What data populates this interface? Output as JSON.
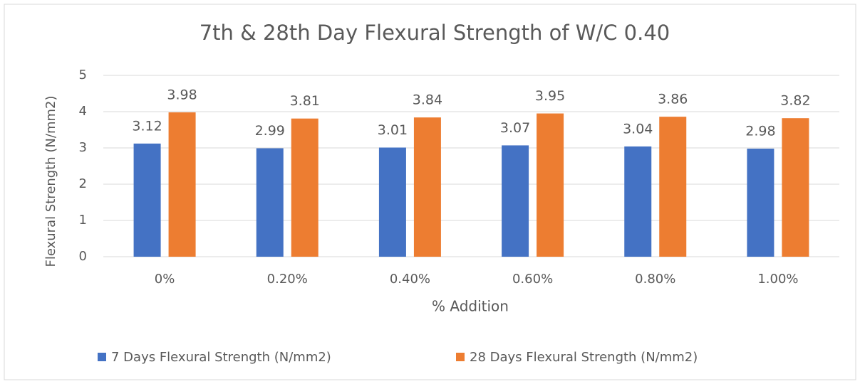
{
  "chart_data": {
    "type": "bar",
    "title": "7th & 28th Day Flexural Strength of W/C 0.40",
    "xlabel": "% Addition",
    "ylabel": "Flexural Strength (N/mm2)",
    "categories": [
      "0%",
      "0.20%",
      "0.40%",
      "0.60%",
      "0.80%",
      "1.00%"
    ],
    "series": [
      {
        "name": "7 Days Flexural Strength (N/mm2)",
        "color": "#4472c4",
        "values": [
          3.12,
          2.99,
          3.01,
          3.07,
          3.04,
          2.98
        ]
      },
      {
        "name": "28 Days Flexural Strength (N/mm2)",
        "color": "#ed7d31",
        "values": [
          3.98,
          3.81,
          3.84,
          3.95,
          3.86,
          3.82
        ]
      }
    ],
    "ylim": [
      0,
      5
    ],
    "yticks": [
      0,
      1,
      2,
      3,
      4,
      5
    ],
    "grid": true,
    "legend": "bottom"
  }
}
